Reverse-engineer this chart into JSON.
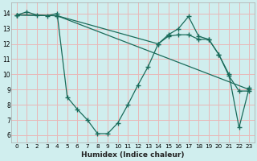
{
  "background_color": "#d0eeee",
  "grid_color": "#e8b8b8",
  "line_color": "#1a6b5a",
  "xlabel": "Humidex (Indice chaleur)",
  "xlim": [
    -0.5,
    23.5
  ],
  "ylim": [
    5.5,
    14.7
  ],
  "yticks": [
    6,
    7,
    8,
    9,
    10,
    11,
    12,
    13,
    14
  ],
  "xticks": [
    0,
    1,
    2,
    3,
    4,
    5,
    6,
    7,
    8,
    9,
    10,
    11,
    12,
    13,
    14,
    15,
    16,
    17,
    18,
    19,
    20,
    21,
    22,
    23
  ],
  "series1": [
    [
      0,
      13.9
    ],
    [
      1,
      14.1
    ],
    [
      2,
      13.9
    ],
    [
      3,
      13.85
    ],
    [
      4,
      14.0
    ],
    [
      5,
      8.5
    ],
    [
      6,
      7.7
    ],
    [
      7,
      7.0
    ],
    [
      8,
      6.1
    ],
    [
      9,
      6.1
    ],
    [
      10,
      6.8
    ],
    [
      11,
      8.0
    ],
    [
      12,
      9.3
    ],
    [
      13,
      10.5
    ],
    [
      14,
      12.0
    ],
    [
      15,
      12.6
    ],
    [
      16,
      13.0
    ],
    [
      17,
      13.8
    ],
    [
      18,
      12.5
    ],
    [
      19,
      12.3
    ],
    [
      20,
      11.3
    ],
    [
      21,
      10.0
    ],
    [
      22,
      6.5
    ],
    [
      23,
      9.1
    ]
  ],
  "series2": [
    [
      0,
      13.9
    ],
    [
      4,
      13.85
    ],
    [
      23,
      9.0
    ]
  ],
  "series3": [
    [
      0,
      13.9
    ],
    [
      4,
      13.85
    ],
    [
      14,
      12.0
    ],
    [
      15,
      12.5
    ],
    [
      16,
      12.6
    ],
    [
      17,
      12.6
    ],
    [
      18,
      12.3
    ],
    [
      19,
      12.3
    ],
    [
      20,
      11.3
    ],
    [
      21,
      9.9
    ],
    [
      22,
      8.9
    ],
    [
      23,
      8.9
    ]
  ]
}
